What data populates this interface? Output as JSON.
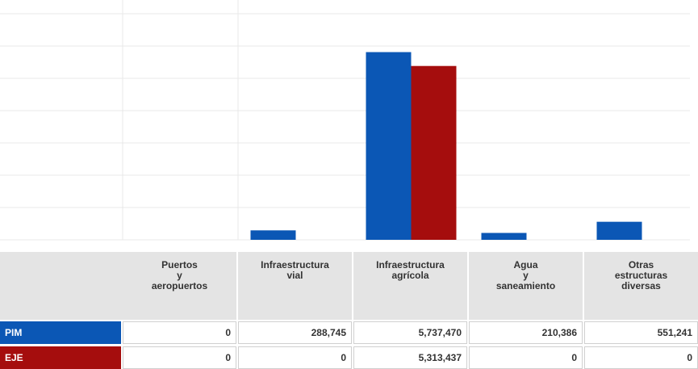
{
  "chart_data": {
    "type": "bar",
    "categories": [
      "Puertos\ny\naeropuertos",
      "Infraestructura\nvial",
      "Infraestructura\nagrícola",
      "Agua\ny\nsaneamiento",
      "Otras\nestructuras\ndiversas"
    ],
    "series": [
      {
        "name": "PIM",
        "color": "#0b57b5",
        "values": [
          0,
          288745,
          5737470,
          210386,
          551241
        ],
        "value_labels": [
          "0",
          "288,745",
          "5,737,470",
          "210,386",
          "551,241"
        ]
      },
      {
        "name": "EJE",
        "color": "#a50d0d",
        "values": [
          0,
          0,
          5313437,
          0,
          0
        ],
        "value_labels": [
          "0",
          "0",
          "5,313,437",
          "0",
          "0"
        ]
      }
    ],
    "grid": true
  }
}
